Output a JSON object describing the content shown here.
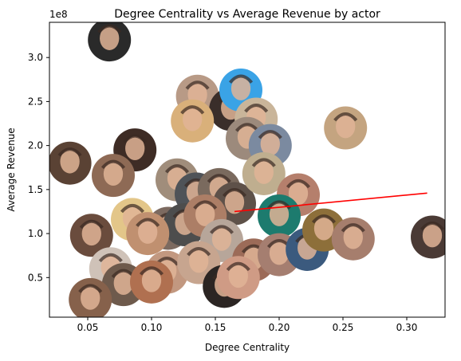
{
  "chart_data": {
    "type": "scatter",
    "title": "Degree Centrality vs Average Revenue by actor",
    "xlabel": "Degree Centrality",
    "ylabel": "Average Revenue",
    "y_scale_label": "1e8",
    "xlim": [
      0.02,
      0.33
    ],
    "ylim": [
      5000000,
      340000000
    ],
    "x_ticks": [
      0.05,
      0.1,
      0.15,
      0.2,
      0.25,
      0.3
    ],
    "x_tick_labels": [
      "0.05",
      "0.10",
      "0.15",
      "0.20",
      "0.25",
      "0.30"
    ],
    "y_ticks": [
      50000000,
      100000000,
      150000000,
      200000000,
      250000000,
      300000000
    ],
    "y_tick_labels": [
      "0.5",
      "1.0",
      "1.5",
      "2.0",
      "2.5",
      "3.0"
    ],
    "grid": false,
    "marker": "circular actor photo",
    "points": [
      {
        "x": 0.067,
        "y": 320000000,
        "color": "#2a2a2a"
      },
      {
        "x": 0.136,
        "y": 256000000,
        "color": "#b89a86"
      },
      {
        "x": 0.162,
        "y": 241000000,
        "color": "#3a2e2a"
      },
      {
        "x": 0.17,
        "y": 263000000,
        "color": "#3aa3e6"
      },
      {
        "x": 0.132,
        "y": 228000000,
        "color": "#d9b07a"
      },
      {
        "x": 0.182,
        "y": 230000000,
        "color": "#c9b59a"
      },
      {
        "x": 0.175,
        "y": 208000000,
        "color": "#9c8a7c"
      },
      {
        "x": 0.193,
        "y": 200000000,
        "color": "#7b8aa0"
      },
      {
        "x": 0.252,
        "y": 220000000,
        "color": "#c4a480"
      },
      {
        "x": 0.036,
        "y": 180000000,
        "color": "#5a4234"
      },
      {
        "x": 0.087,
        "y": 195000000,
        "color": "#3e2c25"
      },
      {
        "x": 0.07,
        "y": 166000000,
        "color": "#8e6a55"
      },
      {
        "x": 0.12,
        "y": 161000000,
        "color": "#a08d7b"
      },
      {
        "x": 0.135,
        "y": 145000000,
        "color": "#4f5358"
      },
      {
        "x": 0.153,
        "y": 150000000,
        "color": "#7a6a5e"
      },
      {
        "x": 0.165,
        "y": 134000000,
        "color": "#5e5149"
      },
      {
        "x": 0.188,
        "y": 168000000,
        "color": "#bfae8f"
      },
      {
        "x": 0.215,
        "y": 144000000,
        "color": "#b57f6c"
      },
      {
        "x": 0.2,
        "y": 120000000,
        "color": "#1d7b6e"
      },
      {
        "x": 0.085,
        "y": 116000000,
        "color": "#e3c689"
      },
      {
        "x": 0.113,
        "y": 106000000,
        "color": "#7c6a60"
      },
      {
        "x": 0.126,
        "y": 110000000,
        "color": "#4d4d4d"
      },
      {
        "x": 0.142,
        "y": 120000000,
        "color": "#ac7e66"
      },
      {
        "x": 0.053,
        "y": 98000000,
        "color": "#6a4c3d"
      },
      {
        "x": 0.097,
        "y": 100000000,
        "color": "#c09070"
      },
      {
        "x": 0.155,
        "y": 92000000,
        "color": "#b7a69a"
      },
      {
        "x": 0.18,
        "y": 70000000,
        "color": "#9c6b58"
      },
      {
        "x": 0.2,
        "y": 76000000,
        "color": "#a57e70"
      },
      {
        "x": 0.222,
        "y": 82000000,
        "color": "#3b5a7e"
      },
      {
        "x": 0.235,
        "y": 104000000,
        "color": "#8d6f3a"
      },
      {
        "x": 0.258,
        "y": 94000000,
        "color": "#a67e6d"
      },
      {
        "x": 0.068,
        "y": 60000000,
        "color": "#cfc2b8"
      },
      {
        "x": 0.112,
        "y": 56000000,
        "color": "#c29880"
      },
      {
        "x": 0.137,
        "y": 67000000,
        "color": "#c7a58f"
      },
      {
        "x": 0.157,
        "y": 40000000,
        "color": "#2b2523"
      },
      {
        "x": 0.168,
        "y": 50000000,
        "color": "#cf9b85"
      },
      {
        "x": 0.078,
        "y": 42000000,
        "color": "#6e5a4c"
      },
      {
        "x": 0.1,
        "y": 45000000,
        "color": "#b07050"
      },
      {
        "x": 0.052,
        "y": 25000000,
        "color": "#86614b"
      },
      {
        "x": 0.32,
        "y": 96000000,
        "color": "#4a3a35"
      }
    ],
    "trend_line": {
      "color": "#ff0000",
      "x": [
        0.165,
        0.316
      ],
      "y": [
        125000000,
        146000000
      ]
    }
  }
}
